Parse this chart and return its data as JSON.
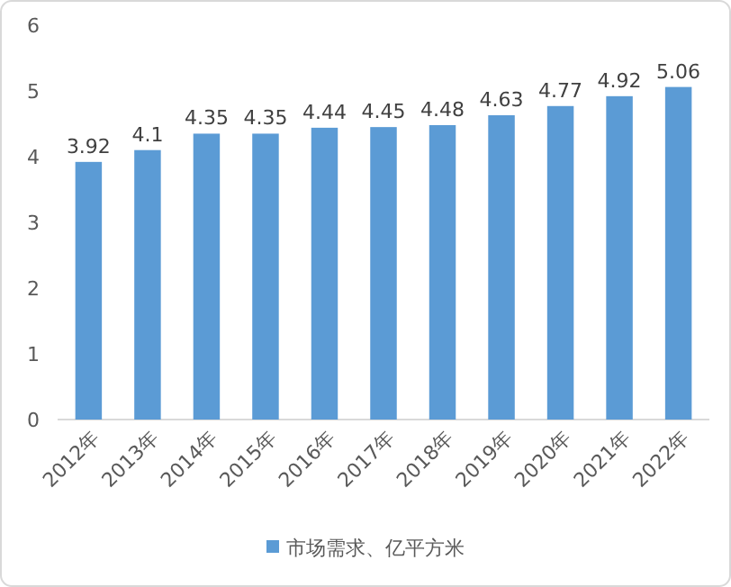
{
  "chart_data": {
    "type": "bar",
    "categories": [
      "2012年",
      "2013年",
      "2014年",
      "2015年",
      "2016年",
      "2017年",
      "2018年",
      "2019年",
      "2020年",
      "2021年",
      "2022年"
    ],
    "series": [
      {
        "name": "市场需求、亿平方米",
        "color": "#5b9bd5",
        "values": [
          3.92,
          4.1,
          4.35,
          4.35,
          4.44,
          4.45,
          4.48,
          4.63,
          4.77,
          4.92,
          5.06
        ]
      }
    ],
    "ylim": [
      0,
      6
    ],
    "yticks": [
      0,
      1,
      2,
      3,
      4,
      5,
      6
    ],
    "data_labels": true,
    "legend": "bottom"
  }
}
